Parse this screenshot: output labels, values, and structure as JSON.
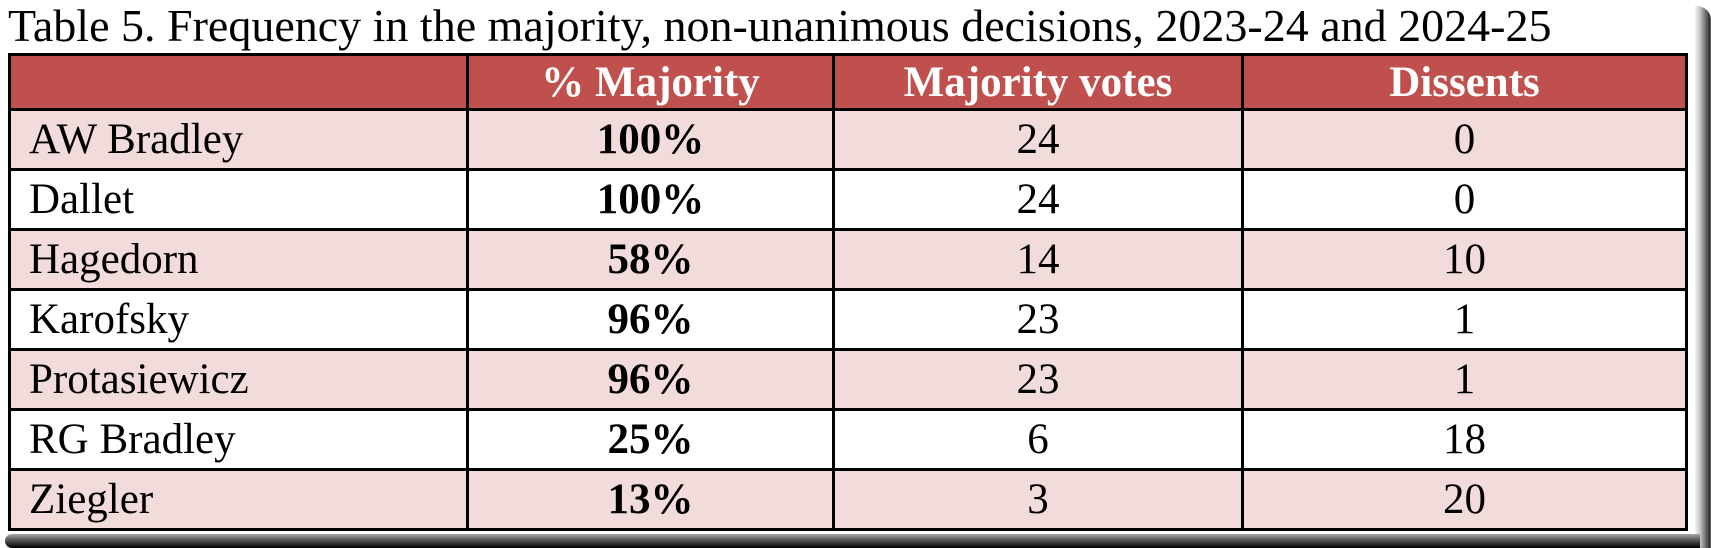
{
  "title": "Table 5. Frequency in the majority, non-unanimous decisions, 2023-24 and 2024-25",
  "table": {
    "columns": [
      "",
      "% Majority",
      "Majority votes",
      "Dissents"
    ],
    "rows": [
      {
        "name": "AW Bradley",
        "pct_majority": "100%",
        "majority_votes": "24",
        "dissents": "0"
      },
      {
        "name": "Dallet",
        "pct_majority": "100%",
        "majority_votes": "24",
        "dissents": "0"
      },
      {
        "name": "Hagedorn",
        "pct_majority": "58%",
        "majority_votes": "14",
        "dissents": "10"
      },
      {
        "name": "Karofsky",
        "pct_majority": "96%",
        "majority_votes": "23",
        "dissents": "1"
      },
      {
        "name": "Protasiewicz",
        "pct_majority": "96%",
        "majority_votes": "23",
        "dissents": "1"
      },
      {
        "name": "RG Bradley",
        "pct_majority": "25%",
        "majority_votes": "6",
        "dissents": "18"
      },
      {
        "name": "Ziegler",
        "pct_majority": "13%",
        "majority_votes": "3",
        "dissents": "20"
      }
    ]
  },
  "chart_data": {
    "type": "table",
    "title": "Table 5. Frequency in the majority, non-unanimous decisions, 2023-24 and 2024-25",
    "categories": [
      "AW Bradley",
      "Dallet",
      "Hagedorn",
      "Karofsky",
      "Protasiewicz",
      "RG Bradley",
      "Ziegler"
    ],
    "series": [
      {
        "name": "% Majority",
        "values": [
          100,
          100,
          58,
          96,
          96,
          25,
          13
        ]
      },
      {
        "name": "Majority votes",
        "values": [
          24,
          24,
          14,
          23,
          23,
          6,
          3
        ]
      },
      {
        "name": "Dissents",
        "values": [
          0,
          0,
          10,
          1,
          1,
          18,
          20
        ]
      }
    ]
  },
  "colors": {
    "header_bg": "#C0504D",
    "header_text": "#FFFFFF",
    "row_stripe_bg": "#F2DCDB",
    "row_plain_bg": "#FFFFFF",
    "body_text": "#000000",
    "border": "#000000"
  }
}
